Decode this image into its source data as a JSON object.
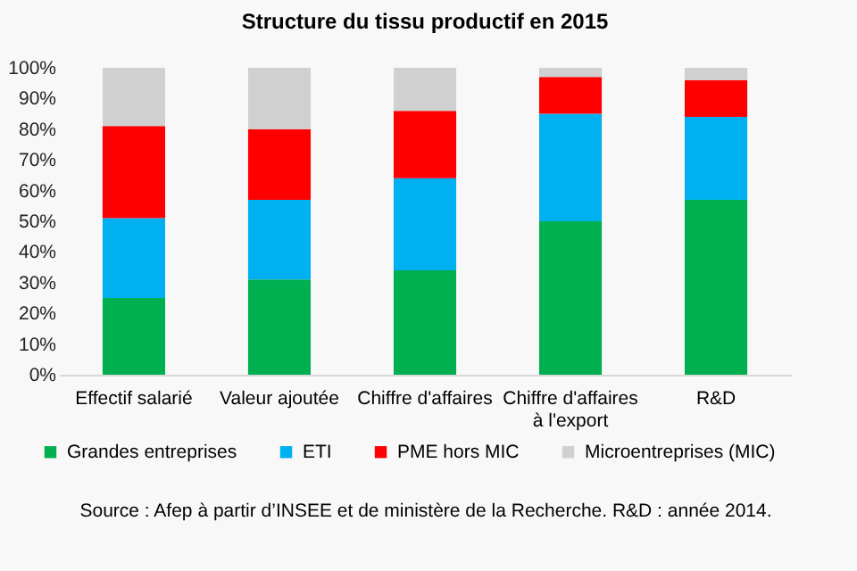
{
  "chart_data": {
    "type": "bar",
    "stacked": true,
    "title": "Structure du tissu productif en 2015",
    "categories": [
      "Effectif salarié",
      "Valeur ajoutée",
      "Chiffre d'affaires",
      "Chiffre d'affaires\nà l'export",
      "R&D"
    ],
    "series": [
      {
        "name": "Grandes entreprises",
        "color": "#00b050",
        "values": [
          25,
          31,
          34,
          50,
          57
        ]
      },
      {
        "name": "ETI",
        "color": "#00b0f0",
        "values": [
          26,
          26,
          30,
          35,
          27
        ]
      },
      {
        "name": "PME hors MIC",
        "color": "#ff0000",
        "values": [
          30,
          23,
          22,
          12,
          12
        ]
      },
      {
        "name": "Microentreprises (MIC)",
        "color": "#d0d0d0",
        "values": [
          19,
          20,
          14,
          3,
          4
        ]
      }
    ],
    "ylim": [
      0,
      100
    ],
    "yticks": [
      {
        "value": 0,
        "label": "0%"
      },
      {
        "value": 10,
        "label": "10%"
      },
      {
        "value": 20,
        "label": "20%"
      },
      {
        "value": 30,
        "label": "30%"
      },
      {
        "value": 40,
        "label": "40%"
      },
      {
        "value": 50,
        "label": "50%"
      },
      {
        "value": 60,
        "label": "60%"
      },
      {
        "value": 70,
        "label": "70%"
      },
      {
        "value": 80,
        "label": "80%"
      },
      {
        "value": 90,
        "label": "90%"
      },
      {
        "value": 100,
        "label": "100%"
      }
    ],
    "legend": "bottom",
    "annotations": [
      "Source : Afep à partir d’INSEE et de ministère de la Recherche. R&D : année 2014."
    ]
  }
}
